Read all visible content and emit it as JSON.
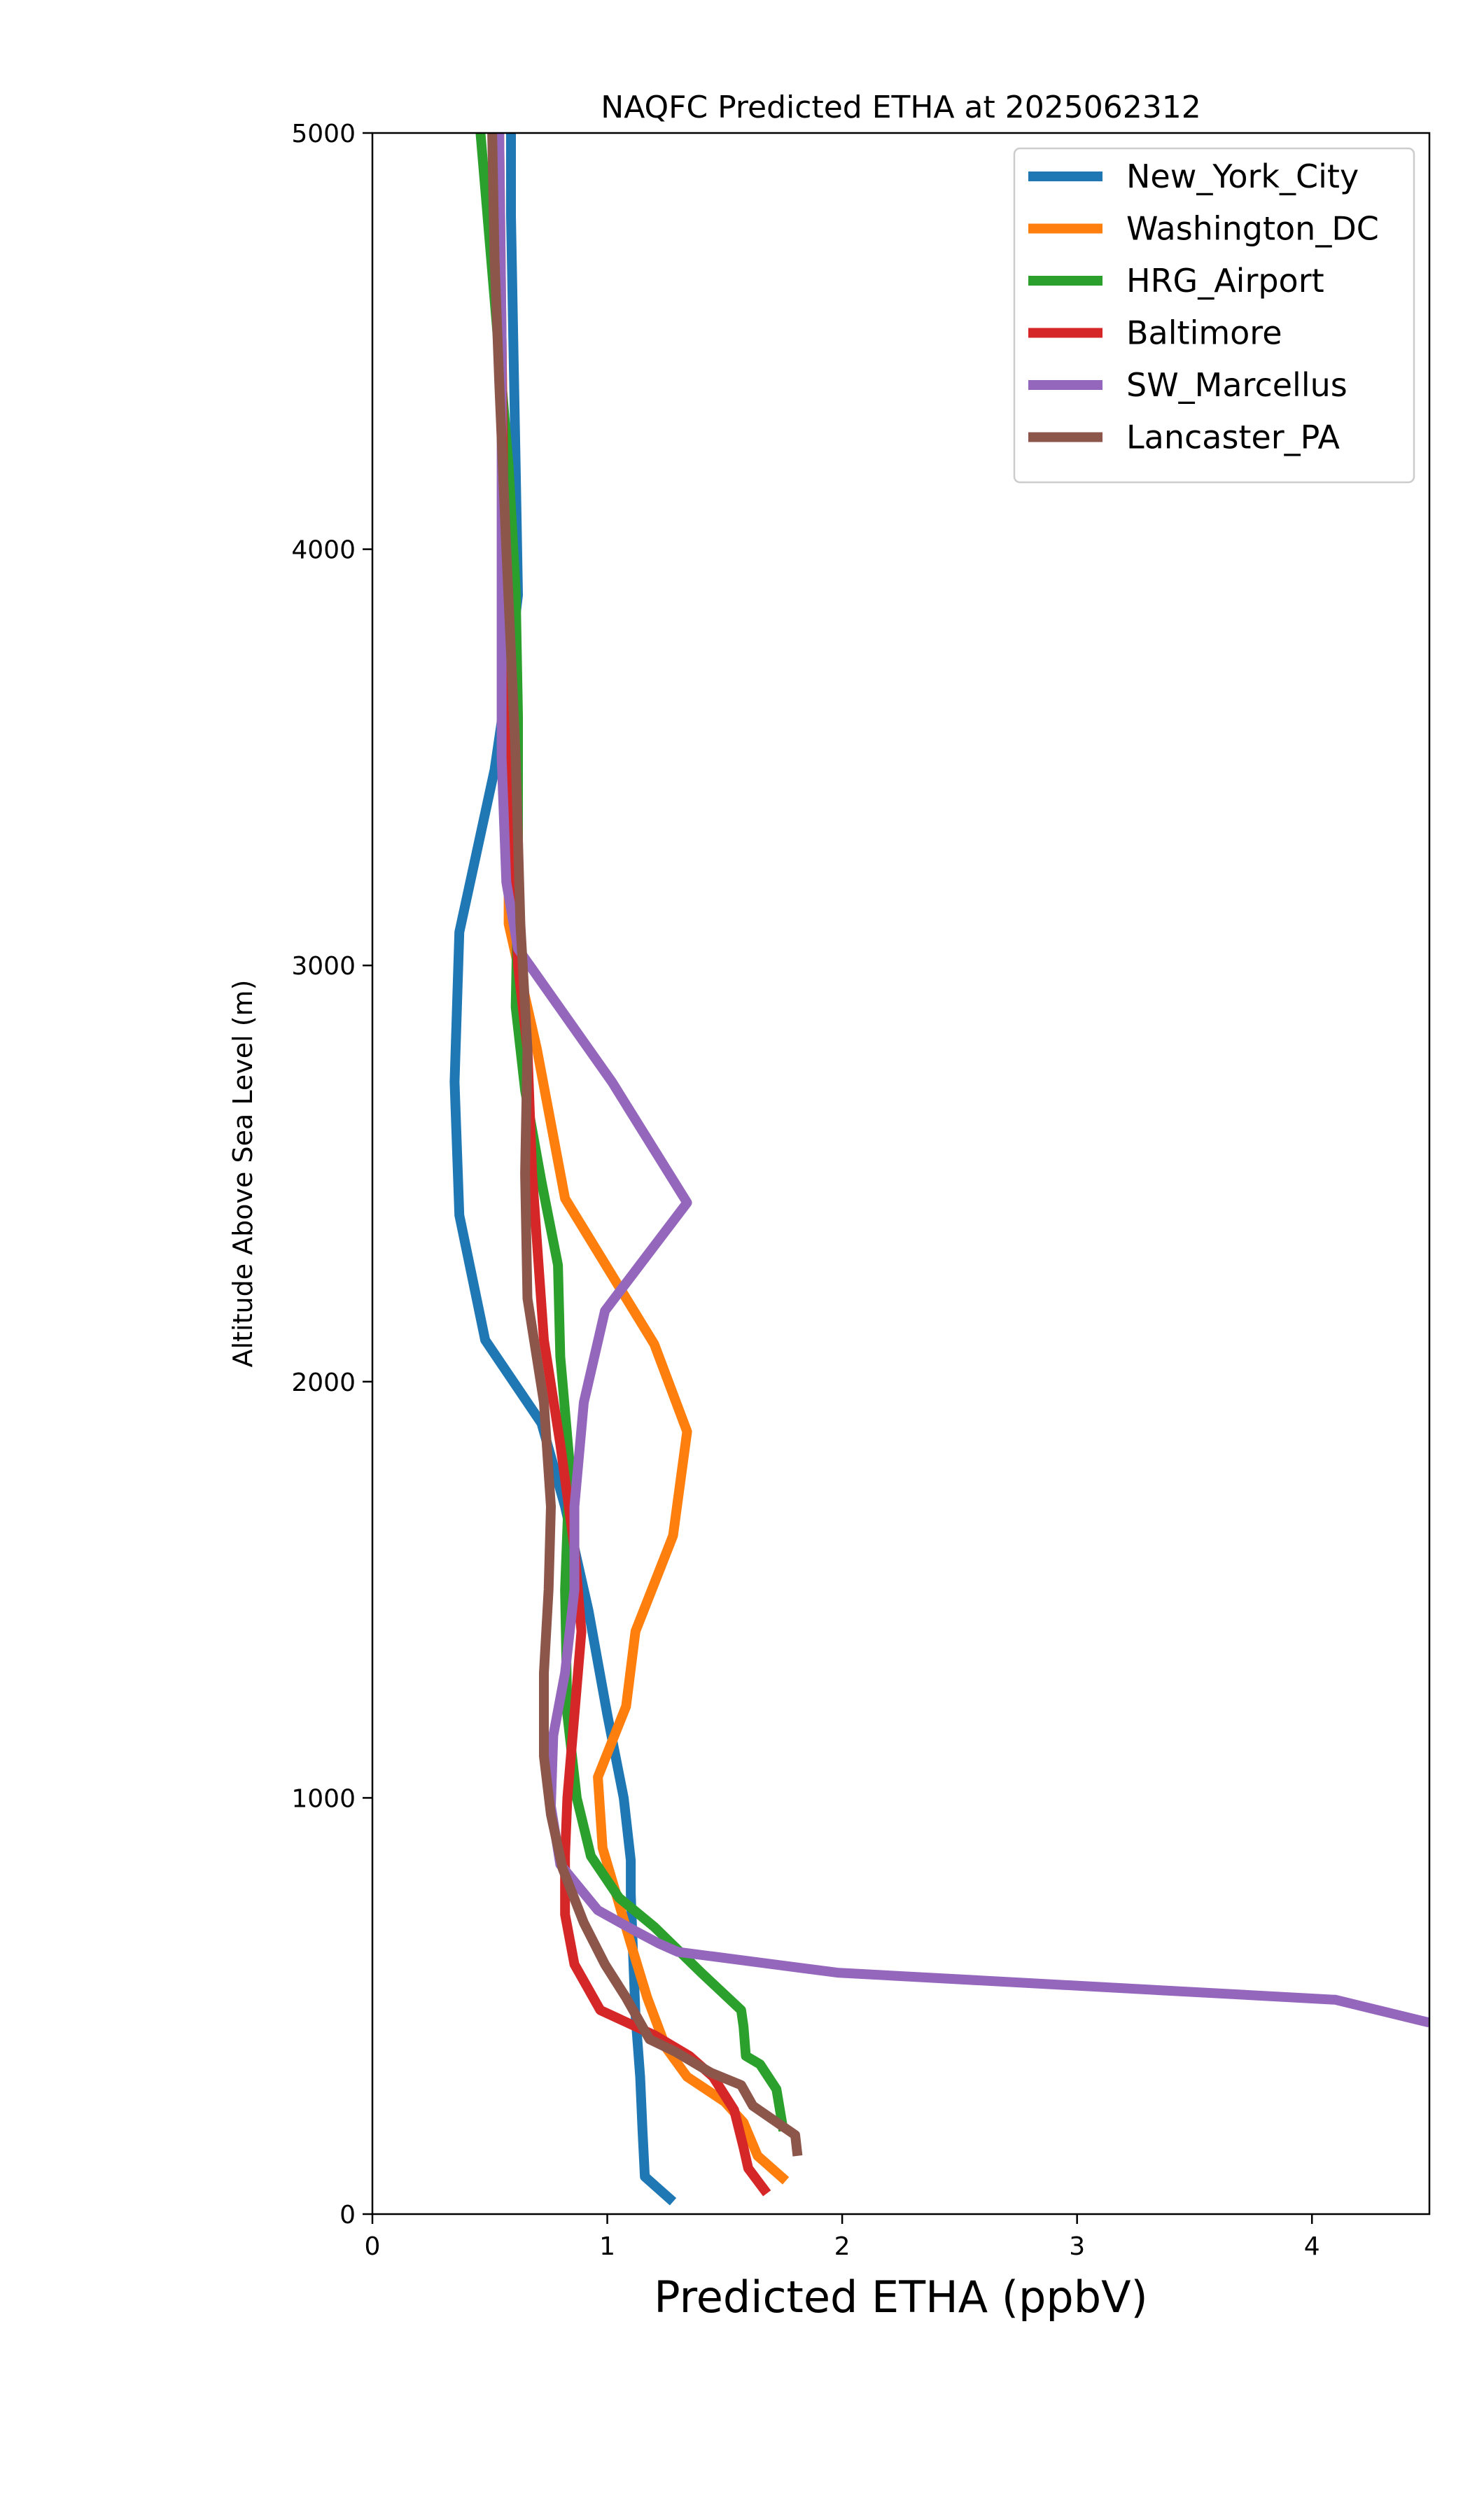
{
  "chart_data": {
    "type": "line",
    "title": "NAQFC Predicted ETHA at 2025062312",
    "xlabel": "Predicted ETHA (ppbV)",
    "ylabel": "Altitude Above Sea Level (m)",
    "xlim": [
      0,
      4.5
    ],
    "ylim": [
      0,
      5000
    ],
    "xticks": [
      "0",
      "1",
      "2",
      "3",
      "4"
    ],
    "yticks": [
      "0",
      "1000",
      "2000",
      "3000",
      "4000",
      "5000"
    ],
    "grid": false,
    "legend_position": "top-right",
    "series": [
      {
        "name": "New_York_City",
        "color": "#1f77b4",
        "points": [
          [
            1.28,
            30
          ],
          [
            1.16,
            90
          ],
          [
            1.15,
            200
          ],
          [
            1.14,
            330
          ],
          [
            1.12,
            480
          ],
          [
            1.11,
            620
          ],
          [
            1.1,
            770
          ],
          [
            1.1,
            850
          ],
          [
            1.07,
            1000
          ],
          [
            1.0,
            1200
          ],
          [
            0.92,
            1450
          ],
          [
            0.82,
            1700
          ],
          [
            0.72,
            1900
          ],
          [
            0.48,
            2100
          ],
          [
            0.37,
            2400
          ],
          [
            0.35,
            2720
          ],
          [
            0.37,
            3080
          ],
          [
            0.52,
            3470
          ],
          [
            0.58,
            3700
          ],
          [
            0.62,
            3890
          ],
          [
            0.61,
            4200
          ],
          [
            0.6,
            4500
          ],
          [
            0.59,
            4800
          ],
          [
            0.59,
            5000
          ]
        ]
      },
      {
        "name": "Washington_DC",
        "color": "#ff7f0e",
        "points": [
          [
            1.76,
            80
          ],
          [
            1.64,
            140
          ],
          [
            1.58,
            220
          ],
          [
            1.5,
            270
          ],
          [
            1.34,
            330
          ],
          [
            1.25,
            400
          ],
          [
            1.17,
            520
          ],
          [
            1.1,
            650
          ],
          [
            0.98,
            880
          ],
          [
            0.96,
            1050
          ],
          [
            1.08,
            1220
          ],
          [
            1.12,
            1400
          ],
          [
            1.28,
            1630
          ],
          [
            1.34,
            1880
          ],
          [
            1.2,
            2090
          ],
          [
            0.82,
            2440
          ],
          [
            0.7,
            2800
          ],
          [
            0.58,
            3100
          ],
          [
            0.58,
            3500
          ],
          [
            0.56,
            4000
          ],
          [
            0.55,
            4500
          ],
          [
            0.54,
            5000
          ]
        ]
      },
      {
        "name": "HRG_Airport",
        "color": "#2ca02c",
        "points": [
          [
            1.75,
            200
          ],
          [
            1.72,
            300
          ],
          [
            1.65,
            360
          ],
          [
            1.59,
            380
          ],
          [
            1.58,
            450
          ],
          [
            1.57,
            490
          ],
          [
            1.4,
            580
          ],
          [
            1.2,
            690
          ],
          [
            1.05,
            760
          ],
          [
            0.93,
            860
          ],
          [
            0.87,
            1000
          ],
          [
            0.83,
            1200
          ],
          [
            0.82,
            1500
          ],
          [
            0.84,
            1800
          ],
          [
            0.8,
            2060
          ],
          [
            0.79,
            2280
          ],
          [
            0.72,
            2480
          ],
          [
            0.65,
            2700
          ],
          [
            0.61,
            2900
          ],
          [
            0.62,
            3200
          ],
          [
            0.62,
            3600
          ],
          [
            0.61,
            3900
          ],
          [
            0.58,
            4200
          ],
          [
            0.52,
            4600
          ],
          [
            0.46,
            5000
          ]
        ]
      },
      {
        "name": "Baltimore",
        "color": "#d62728",
        "points": [
          [
            1.68,
            50
          ],
          [
            1.6,
            110
          ],
          [
            1.58,
            160
          ],
          [
            1.54,
            250
          ],
          [
            1.45,
            330
          ],
          [
            1.35,
            380
          ],
          [
            1.2,
            430
          ],
          [
            0.97,
            490
          ],
          [
            0.86,
            600
          ],
          [
            0.82,
            720
          ],
          [
            0.82,
            860
          ],
          [
            0.83,
            1000
          ],
          [
            0.86,
            1200
          ],
          [
            0.89,
            1400
          ],
          [
            0.86,
            1600
          ],
          [
            0.8,
            1850
          ],
          [
            0.73,
            2100
          ],
          [
            0.68,
            2500
          ],
          [
            0.66,
            2800
          ],
          [
            0.62,
            3000
          ],
          [
            0.6,
            3300
          ],
          [
            0.57,
            3600
          ],
          [
            0.56,
            4000
          ],
          [
            0.55,
            4500
          ],
          [
            0.53,
            5000
          ]
        ]
      },
      {
        "name": "SW_Marcellus",
        "color": "#9467bd",
        "points": [
          [
            4.5,
            460
          ],
          [
            4.1,
            515
          ],
          [
            1.98,
            580
          ],
          [
            1.3,
            630
          ],
          [
            1.22,
            650
          ],
          [
            1.12,
            680
          ],
          [
            0.96,
            730
          ],
          [
            0.8,
            840
          ],
          [
            0.76,
            980
          ],
          [
            0.77,
            1150
          ],
          [
            0.82,
            1300
          ],
          [
            0.86,
            1500
          ],
          [
            0.86,
            1700
          ],
          [
            0.9,
            1950
          ],
          [
            0.99,
            2170
          ],
          [
            1.34,
            2430
          ],
          [
            1.02,
            2720
          ],
          [
            0.62,
            3040
          ],
          [
            0.57,
            3200
          ],
          [
            0.55,
            3500
          ],
          [
            0.55,
            4000
          ],
          [
            0.55,
            4500
          ],
          [
            0.54,
            5000
          ]
        ]
      },
      {
        "name": "Lancaster_PA",
        "color": "#8c564b",
        "points": [
          [
            1.81,
            140
          ],
          [
            1.8,
            190
          ],
          [
            1.62,
            260
          ],
          [
            1.57,
            310
          ],
          [
            1.44,
            340
          ],
          [
            1.29,
            390
          ],
          [
            1.18,
            420
          ],
          [
            1.08,
            520
          ],
          [
            0.99,
            600
          ],
          [
            0.9,
            700
          ],
          [
            0.81,
            830
          ],
          [
            0.76,
            960
          ],
          [
            0.73,
            1100
          ],
          [
            0.73,
            1300
          ],
          [
            0.75,
            1500
          ],
          [
            0.76,
            1700
          ],
          [
            0.73,
            1950
          ],
          [
            0.66,
            2200
          ],
          [
            0.65,
            2500
          ],
          [
            0.66,
            2800
          ],
          [
            0.63,
            3100
          ],
          [
            0.61,
            3500
          ],
          [
            0.57,
            4000
          ],
          [
            0.54,
            4400
          ],
          [
            0.52,
            4700
          ],
          [
            0.51,
            5000
          ]
        ]
      }
    ]
  }
}
